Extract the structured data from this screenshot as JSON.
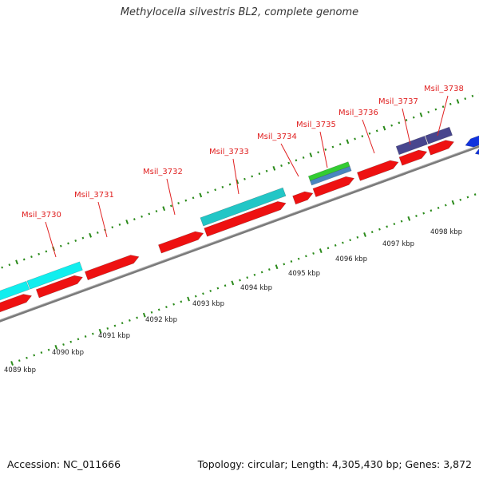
{
  "title": "Methylocella silvestris BL2, complete genome",
  "footer": {
    "accession": "Accession: NC_011666",
    "stats": "Topology: circular; Length: 4,305,430 bp; Genes: 3,872"
  },
  "colors": {
    "backbone": "#7a7a7a",
    "gene_label": "#e02020",
    "tick": "#2a8a1a",
    "scale_text": "#222222",
    "cds_red": "#ee1111",
    "cyan_light": "#11eeee",
    "cyan_dark": "#22c6c6",
    "purple": "#48468e",
    "green": "#33cc33",
    "steelblue": "#4a86c0",
    "blue": "#1133dd"
  },
  "scale": {
    "labels": [
      "4089 kbp",
      "4090 kbp",
      "4091 kbp",
      "4092 kbp",
      "4093 kbp",
      "4094 kbp",
      "4095 kbp",
      "4096 kbp",
      "4097 kbp",
      "4098 kbp"
    ]
  },
  "gene_labels": [
    "Msil_3730",
    "Msil_3731",
    "Msil_3732",
    "Msil_3733",
    "Msil_3734",
    "Msil_3735",
    "Msil_3736",
    "Msil_3737",
    "Msil_3738"
  ]
}
